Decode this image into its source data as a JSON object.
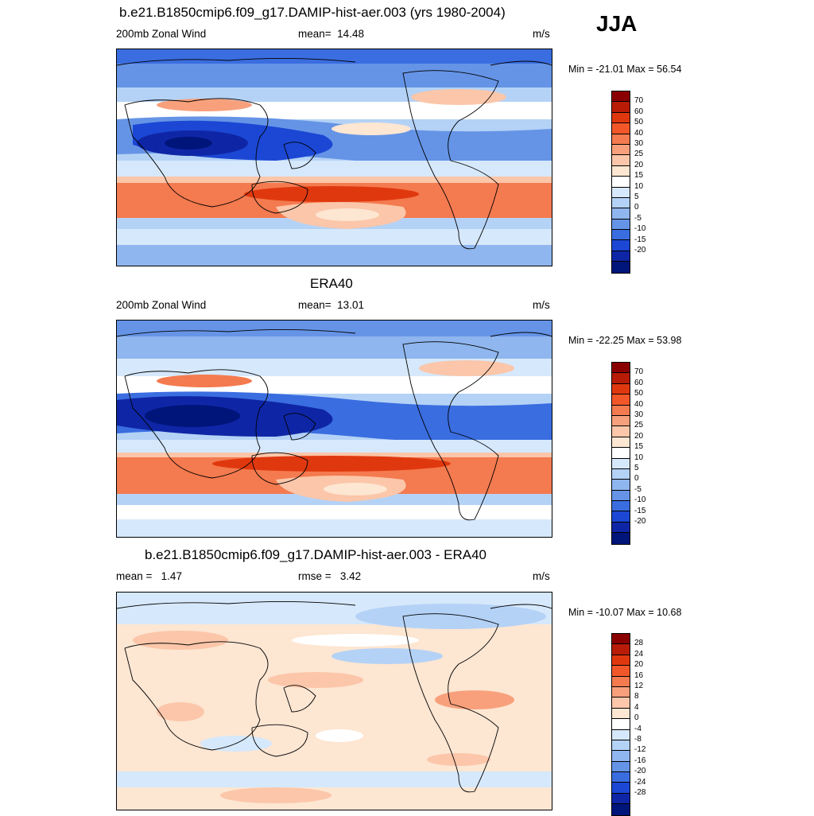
{
  "season": "JJA",
  "panels": [
    {
      "title": "b.e21.B1850cmip6.f09_g17.DAMIP-hist-aer.003 (yrs 1980-2004)",
      "left": "200mb Zonal Wind",
      "center_label": "mean=",
      "center_value": "14.48",
      "units": "m/s",
      "minmax": "Min = -21.01 Max =  56.54",
      "scale": "wind"
    },
    {
      "title": "ERA40",
      "left": "200mb Zonal Wind",
      "center_label": "mean=",
      "center_value": "13.01",
      "units": "m/s",
      "minmax": "Min = -22.25 Max =  53.98",
      "scale": "wind"
    },
    {
      "title": "b.e21.B1850cmip6.f09_g17.DAMIP-hist-aer.003 - ERA40",
      "left_label": "mean =",
      "left_value": "1.47",
      "center_label": "rmse =",
      "center_value": "3.42",
      "units": "m/s",
      "minmax": "Min = -10.07 Max =  10.68",
      "scale": "diff"
    }
  ],
  "colorbars": {
    "wind": {
      "labels": [
        "70",
        "60",
        "50",
        "40",
        "30",
        "25",
        "20",
        "15",
        "10",
        "5",
        "0",
        "-5",
        "-10",
        "-15",
        "-20"
      ],
      "colors": [
        "#8a0000",
        "#b81c06",
        "#e0380e",
        "#f2572a",
        "#f47a4f",
        "#f8a07c",
        "#fbc6a9",
        "#fde6d2",
        "#ffffff",
        "#d6e8fb",
        "#b4d2f6",
        "#8fb6ee",
        "#6594e6",
        "#3a6de0",
        "#1b47d4",
        "#0e26a6",
        "#00157a"
      ]
    },
    "diff": {
      "labels": [
        "28",
        "24",
        "20",
        "16",
        "12",
        "8",
        "4",
        "0",
        "-4",
        "-8",
        "-12",
        "-16",
        "-20",
        "-24",
        "-28"
      ],
      "colors": [
        "#8a0000",
        "#b81c06",
        "#e0380e",
        "#f2572a",
        "#f47a4f",
        "#f8a07c",
        "#fbc6a9",
        "#fde6d2",
        "#ffffff",
        "#d6e8fb",
        "#b4d2f6",
        "#8fb6ee",
        "#6594e6",
        "#3a6de0",
        "#1b47d4",
        "#0e26a6",
        "#00157a"
      ]
    }
  }
}
